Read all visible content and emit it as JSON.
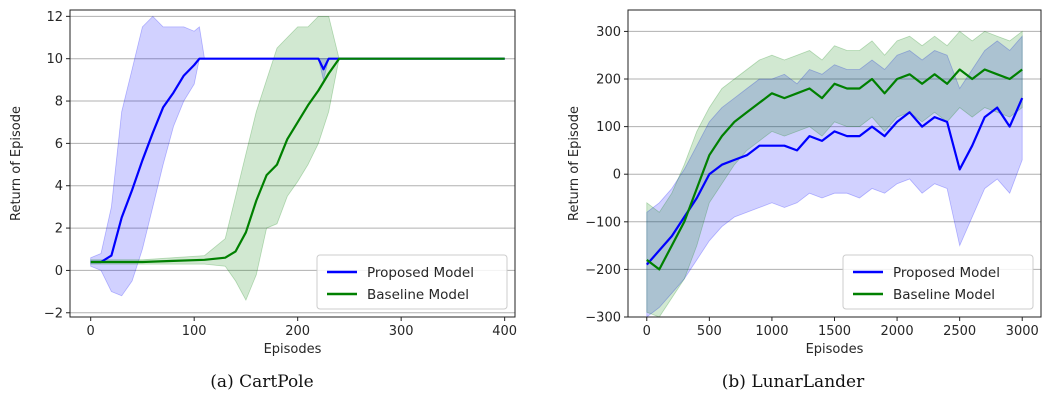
{
  "chart_data": [
    {
      "type": "line",
      "title": "",
      "caption": "(a) CartPole",
      "xlabel": "Episodes",
      "ylabel": "Return of Episode",
      "xlim": [
        -20,
        410
      ],
      "ylim": [
        -2.2,
        12.3
      ],
      "xticks": [
        0,
        100,
        200,
        300,
        400
      ],
      "yticks": [
        -2,
        0,
        2,
        4,
        6,
        8,
        10,
        12
      ],
      "grid": "horizontal",
      "legend_position": "lower-right",
      "series": [
        {
          "name": "Proposed Model",
          "color": "#0000ff",
          "x": [
            0,
            10,
            20,
            30,
            40,
            50,
            60,
            70,
            80,
            90,
            100,
            105,
            110,
            150,
            200,
            220,
            225,
            230,
            240,
            300,
            400
          ],
          "y": [
            0.4,
            0.4,
            0.7,
            2.5,
            3.8,
            5.2,
            6.5,
            7.7,
            8.4,
            9.2,
            9.7,
            10.0,
            10.0,
            10.0,
            10.0,
            10.0,
            9.5,
            10.0,
            10.0,
            10.0,
            10.0
          ],
          "lower": [
            0.2,
            0.0,
            -1.0,
            -1.2,
            -0.5,
            1.0,
            3.0,
            5.0,
            6.8,
            8.0,
            8.8,
            10.0,
            10.0,
            10.0,
            10.0,
            10.0,
            9.0,
            10.0,
            10.0,
            10.0,
            10.0
          ],
          "upper": [
            0.6,
            0.8,
            3.0,
            7.5,
            9.5,
            11.5,
            12.0,
            11.5,
            11.5,
            11.5,
            11.3,
            11.5,
            10.0,
            10.0,
            10.0,
            10.0,
            10.0,
            10.0,
            10.0,
            10.0,
            10.0
          ]
        },
        {
          "name": "Baseline Model",
          "color": "#008000",
          "x": [
            0,
            20,
            50,
            80,
            110,
            130,
            140,
            150,
            160,
            170,
            180,
            190,
            200,
            210,
            220,
            230,
            240,
            300,
            400
          ],
          "y": [
            0.4,
            0.4,
            0.4,
            0.45,
            0.5,
            0.6,
            0.9,
            1.8,
            3.3,
            4.5,
            5.0,
            6.2,
            7.0,
            7.8,
            8.5,
            9.3,
            10.0,
            10.0,
            10.0
          ],
          "lower": [
            0.3,
            0.3,
            0.3,
            0.3,
            0.3,
            0.2,
            -0.5,
            -1.4,
            -0.2,
            2.0,
            2.2,
            3.5,
            4.2,
            5.0,
            6.0,
            7.5,
            10.0,
            10.0,
            10.0
          ],
          "upper": [
            0.5,
            0.5,
            0.5,
            0.6,
            0.7,
            1.5,
            3.5,
            5.5,
            7.5,
            9.0,
            10.5,
            11.0,
            11.5,
            11.5,
            12.0,
            12.0,
            10.0,
            10.0,
            10.0
          ]
        }
      ]
    },
    {
      "type": "line",
      "title": "",
      "caption": "(b) LunarLander",
      "xlabel": "Episodes",
      "ylabel": "Return of Episode",
      "xlim": [
        -150,
        3150
      ],
      "ylim": [
        -300,
        345
      ],
      "xticks": [
        0,
        500,
        1000,
        1500,
        2000,
        2500,
        3000
      ],
      "yticks": [
        -300,
        -200,
        -100,
        0,
        100,
        200,
        300
      ],
      "grid": "horizontal",
      "legend_position": "lower-right",
      "series": [
        {
          "name": "Proposed Model",
          "color": "#0000ff",
          "x": [
            0,
            100,
            200,
            300,
            400,
            500,
            600,
            700,
            800,
            900,
            1000,
            1100,
            1200,
            1300,
            1400,
            1500,
            1600,
            1700,
            1800,
            1900,
            2000,
            2100,
            2200,
            2300,
            2400,
            2500,
            2600,
            2700,
            2800,
            2900,
            3000
          ],
          "y": [
            -190,
            -160,
            -130,
            -90,
            -50,
            0,
            20,
            30,
            40,
            60,
            60,
            60,
            50,
            80,
            70,
            90,
            80,
            80,
            100,
            80,
            110,
            130,
            100,
            120,
            110,
            10,
            60,
            120,
            140,
            100,
            160
          ],
          "lower": [
            -300,
            -280,
            -250,
            -220,
            -180,
            -140,
            -110,
            -90,
            -80,
            -70,
            -60,
            -70,
            -60,
            -40,
            -50,
            -40,
            -40,
            -50,
            -30,
            -40,
            -20,
            -10,
            -40,
            -20,
            -30,
            -150,
            -90,
            -30,
            -10,
            -40,
            30
          ],
          "upper": [
            -80,
            -60,
            -30,
            10,
            60,
            110,
            140,
            160,
            180,
            200,
            200,
            210,
            190,
            220,
            210,
            230,
            220,
            220,
            240,
            220,
            250,
            260,
            240,
            260,
            250,
            180,
            220,
            260,
            280,
            260,
            290
          ]
        },
        {
          "name": "Baseline Model",
          "color": "#008000",
          "x": [
            0,
            100,
            200,
            300,
            400,
            500,
            600,
            700,
            800,
            900,
            1000,
            1100,
            1200,
            1300,
            1400,
            1500,
            1600,
            1700,
            1800,
            1900,
            2000,
            2100,
            2200,
            2300,
            2400,
            2500,
            2600,
            2700,
            2800,
            2900,
            3000
          ],
          "y": [
            -180,
            -200,
            -150,
            -100,
            -30,
            40,
            80,
            110,
            130,
            150,
            170,
            160,
            170,
            180,
            160,
            190,
            180,
            180,
            200,
            170,
            200,
            210,
            190,
            210,
            190,
            220,
            200,
            220,
            210,
            200,
            220
          ],
          "lower": [
            -290,
            -300,
            -260,
            -220,
            -150,
            -60,
            -20,
            20,
            50,
            70,
            90,
            80,
            90,
            100,
            80,
            110,
            100,
            100,
            120,
            90,
            120,
            130,
            110,
            130,
            110,
            140,
            120,
            140,
            130,
            120,
            140
          ],
          "upper": [
            -60,
            -80,
            -40,
            20,
            90,
            140,
            180,
            200,
            220,
            240,
            250,
            240,
            250,
            260,
            240,
            270,
            260,
            260,
            280,
            250,
            280,
            290,
            270,
            290,
            270,
            300,
            280,
            300,
            290,
            280,
            300
          ]
        }
      ]
    }
  ],
  "captions": {
    "a": "(a) CartPole",
    "b": "(b) LunarLander"
  }
}
